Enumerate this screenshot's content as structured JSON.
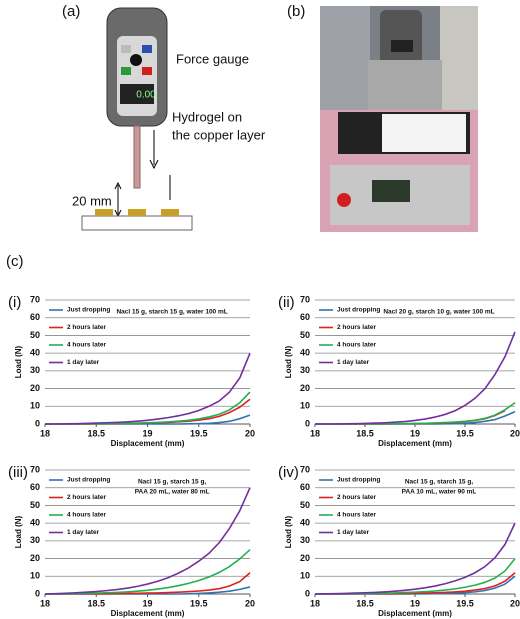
{
  "figure": {
    "panel_a": "(a)",
    "panel_b": "(b)",
    "panel_c": "(c)",
    "force_gauge": "Force gauge",
    "gauge_display": "0.00",
    "hydrogel": [
      "Hydrogel on",
      "the copper layer"
    ],
    "distance": "20 mm"
  },
  "chart_data": [
    {
      "type": "line",
      "panel": "(i)",
      "annotation": [
        "Nacl 15 g, starch  15 g, water 100 mL"
      ],
      "x_label": "Displacement (mm)",
      "y_label": "Load (N)",
      "x": [
        18,
        18.1,
        18.2,
        18.3,
        18.4,
        18.5,
        18.6,
        18.7,
        18.8,
        18.9,
        19,
        19.1,
        19.2,
        19.3,
        19.4,
        19.5,
        19.6,
        19.7,
        19.8,
        19.9,
        20
      ],
      "xlim": [
        18,
        20
      ],
      "xticks": [
        18,
        18.5,
        19,
        19.5,
        20
      ],
      "ylim": [
        0,
        70
      ],
      "yticks": [
        0,
        10,
        20,
        30,
        40,
        50,
        60,
        70
      ],
      "grid": true,
      "legend": "upper left",
      "series": [
        {
          "name": "Just dropping",
          "color": "#2e75b6",
          "values": [
            0,
            0,
            0,
            0,
            0,
            0,
            0,
            0,
            0,
            0,
            0,
            0,
            0,
            0,
            0.1,
            0.2,
            0.4,
            0.8,
            1.5,
            3,
            5
          ]
        },
        {
          "name": "2 hours later",
          "color": "#e02020",
          "values": [
            0,
            0,
            0,
            0,
            0,
            0.1,
            0.1,
            0.2,
            0.3,
            0.4,
            0.5,
            0.7,
            0.9,
            1.2,
            1.6,
            2.2,
            3,
            4.3,
            6.5,
            9.5,
            14
          ]
        },
        {
          "name": "4 hours later",
          "color": "#22b04c",
          "values": [
            0,
            0,
            0,
            0,
            0.1,
            0.1,
            0.2,
            0.3,
            0.4,
            0.5,
            0.7,
            0.9,
            1.2,
            1.6,
            2.1,
            2.9,
            4,
            5.5,
            8,
            12,
            18
          ]
        },
        {
          "name": "1 day later",
          "color": "#7030a0",
          "values": [
            0,
            0,
            0.1,
            0.2,
            0.3,
            0.5,
            0.7,
            0.9,
            1.2,
            1.6,
            2.1,
            2.8,
            3.6,
            4.6,
            5.9,
            7.6,
            10,
            13,
            18,
            26,
            40
          ]
        }
      ]
    },
    {
      "type": "line",
      "panel": "(ii)",
      "annotation": [
        "Nacl 20 g, starch  10 g, water 100 mL"
      ],
      "x_label": "Displacement (mm)",
      "y_label": "Load (N)",
      "x": [
        18,
        18.1,
        18.2,
        18.3,
        18.4,
        18.5,
        18.6,
        18.7,
        18.8,
        18.9,
        19,
        19.1,
        19.2,
        19.3,
        19.4,
        19.5,
        19.6,
        19.7,
        19.8,
        19.9,
        20
      ],
      "xlim": [
        18,
        20
      ],
      "xticks": [
        18,
        18.5,
        19,
        19.5,
        20
      ],
      "ylim": [
        0,
        70
      ],
      "yticks": [
        0,
        10,
        20,
        30,
        40,
        50,
        60,
        70
      ],
      "grid": true,
      "legend": "upper left",
      "series": [
        {
          "name": "Just dropping",
          "color": "#2e75b6",
          "values": [
            0,
            0,
            0,
            0,
            0,
            0,
            0,
            0,
            0,
            0,
            0,
            0,
            0,
            0.1,
            0.2,
            0.4,
            0.8,
            1.5,
            2.5,
            4.5,
            7
          ]
        },
        {
          "name": "2 hours later",
          "color": "#e02020",
          "values": [
            0,
            0,
            0,
            0,
            0,
            0,
            0,
            0,
            0.1,
            0.1,
            0.2,
            0.3,
            0.4,
            0.6,
            0.9,
            1.3,
            2,
            3,
            4.8,
            7.5,
            null
          ]
        },
        {
          "name": "4 hours later",
          "color": "#22b04c",
          "values": [
            0,
            0,
            0,
            0,
            0,
            0,
            0,
            0.1,
            0.1,
            0.2,
            0.3,
            0.4,
            0.6,
            0.8,
            1.1,
            1.5,
            2.1,
            3.2,
            5,
            8,
            12
          ]
        },
        {
          "name": "1 day later",
          "color": "#7030a0",
          "values": [
            0,
            0,
            0,
            0.1,
            0.2,
            0.3,
            0.5,
            0.7,
            1,
            1.4,
            2,
            2.8,
            3.9,
            5.4,
            7.5,
            10.5,
            14.5,
            20,
            28,
            38,
            52
          ]
        }
      ]
    },
    {
      "type": "line",
      "panel": "(iii)",
      "annotation": [
        "Nacl 15 g, starch  15 g,",
        "PAA 20 mL, water 80 mL"
      ],
      "x_label": "Displacement (mm)",
      "y_label": "Load (N)",
      "x": [
        18,
        18.1,
        18.2,
        18.3,
        18.4,
        18.5,
        18.6,
        18.7,
        18.8,
        18.9,
        19,
        19.1,
        19.2,
        19.3,
        19.4,
        19.5,
        19.6,
        19.7,
        19.8,
        19.9,
        20
      ],
      "xlim": [
        18,
        20
      ],
      "xticks": [
        18,
        18.5,
        19,
        19.5,
        20
      ],
      "ylim": [
        0,
        70
      ],
      "yticks": [
        0,
        10,
        20,
        30,
        40,
        50,
        60,
        70
      ],
      "grid": true,
      "legend": "upper left",
      "series": [
        {
          "name": "Just dropping",
          "color": "#2e75b6",
          "values": [
            0,
            0,
            0,
            0,
            0,
            0,
            0,
            0,
            0,
            0,
            0,
            0,
            0,
            0,
            0.1,
            0.3,
            0.6,
            1,
            1.6,
            2.6,
            4
          ]
        },
        {
          "name": "2 hours later",
          "color": "#e02020",
          "values": [
            0,
            0,
            0,
            0,
            0,
            0.1,
            0.1,
            0.2,
            0.3,
            0.4,
            0.5,
            0.6,
            0.8,
            1,
            1.3,
            1.7,
            2.2,
            3,
            4.5,
            7,
            12
          ]
        },
        {
          "name": "4 hours later",
          "color": "#22b04c",
          "values": [
            0,
            0,
            0.1,
            0.2,
            0.3,
            0.5,
            0.7,
            0.9,
            1.2,
            1.6,
            2.1,
            2.8,
            3.6,
            4.7,
            6,
            7.6,
            9.6,
            12.2,
            15.5,
            19.8,
            25
          ]
        },
        {
          "name": "1 day later",
          "color": "#7030a0",
          "values": [
            0,
            0.2,
            0.4,
            0.7,
            1,
            1.4,
            1.9,
            2.5,
            3.3,
            4.3,
            5.6,
            7.2,
            9.2,
            11.7,
            14.7,
            18.5,
            23,
            29,
            37,
            47,
            60
          ]
        }
      ]
    },
    {
      "type": "line",
      "panel": "(iv)",
      "annotation": [
        "Nacl 15 g, starch  15 g,",
        "PAA 10 mL, water 90 mL"
      ],
      "x_label": "Displacement (mm)",
      "y_label": "Load (N)",
      "x": [
        18,
        18.1,
        18.2,
        18.3,
        18.4,
        18.5,
        18.6,
        18.7,
        18.8,
        18.9,
        19,
        19.1,
        19.2,
        19.3,
        19.4,
        19.5,
        19.6,
        19.7,
        19.8,
        19.9,
        20
      ],
      "xlim": [
        18,
        20
      ],
      "xticks": [
        18,
        18.5,
        19,
        19.5,
        20
      ],
      "ylim": [
        0,
        70
      ],
      "yticks": [
        0,
        10,
        20,
        30,
        40,
        50,
        60,
        70
      ],
      "grid": true,
      "legend": "upper left",
      "series": [
        {
          "name": "Just dropping",
          "color": "#2e75b6",
          "values": [
            0,
            0,
            0,
            0,
            0,
            0,
            0,
            0,
            0,
            0,
            0.1,
            0.1,
            0.2,
            0.3,
            0.5,
            0.8,
            1.2,
            2,
            3.3,
            5.6,
            10
          ]
        },
        {
          "name": "2 hours later",
          "color": "#e02020",
          "values": [
            0,
            0,
            0,
            0,
            0,
            0.1,
            0.1,
            0.1,
            0.2,
            0.3,
            0.4,
            0.5,
            0.7,
            0.9,
            1.2,
            1.6,
            2.2,
            3.1,
            4.6,
            7.2,
            12
          ]
        },
        {
          "name": "4 hours later",
          "color": "#22b04c",
          "values": [
            0,
            0,
            0,
            0.1,
            0.1,
            0.2,
            0.3,
            0.4,
            0.6,
            0.8,
            1,
            1.3,
            1.7,
            2.2,
            2.9,
            3.8,
            5,
            6.6,
            9,
            13,
            20
          ]
        },
        {
          "name": "1 day later",
          "color": "#7030a0",
          "values": [
            0,
            0.1,
            0.2,
            0.3,
            0.5,
            0.7,
            0.9,
            1.2,
            1.6,
            2.1,
            2.7,
            3.5,
            4.5,
            5.8,
            7.4,
            9.4,
            12,
            15.5,
            20.5,
            28,
            40
          ]
        }
      ]
    }
  ]
}
